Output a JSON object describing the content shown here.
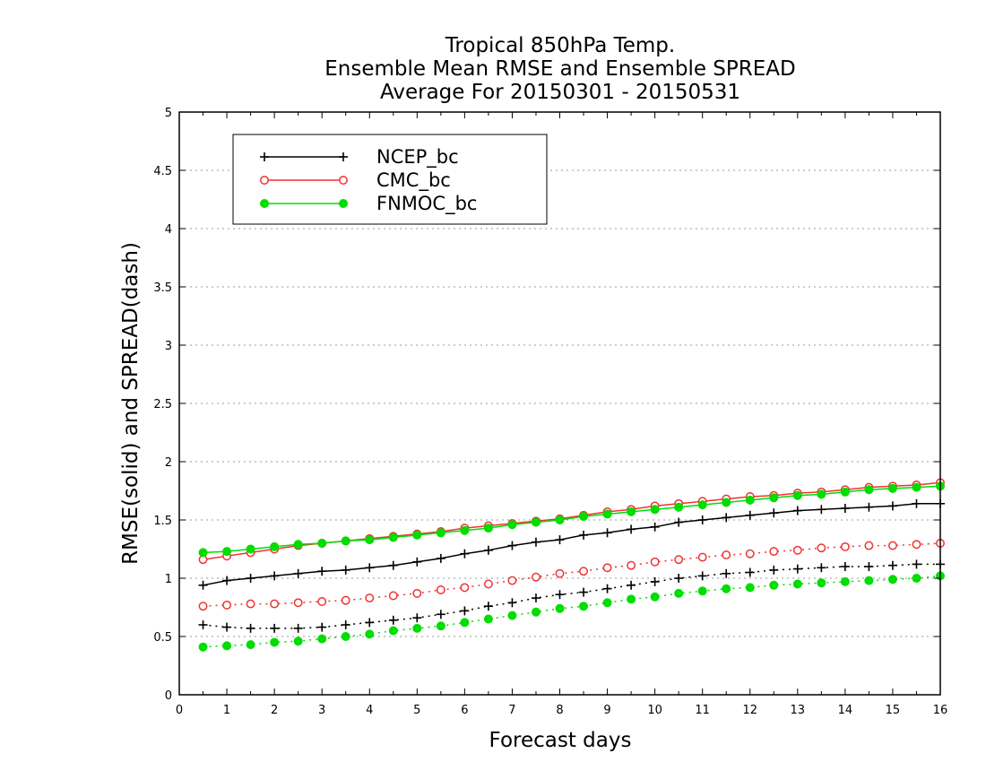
{
  "chart_data": {
    "type": "line",
    "title": [
      "Tropical 850hPa Temp.",
      "Ensemble Mean RMSE and Ensemble SPREAD",
      "Average For 20150301 - 20150531"
    ],
    "xlabel": "Forecast days",
    "ylabel": "RMSE(solid) and SPREAD(dash)",
    "xlim": [
      0,
      16
    ],
    "ylim": [
      0,
      5
    ],
    "xticks": [
      "0",
      "1",
      "2",
      "3",
      "4",
      "5",
      "6",
      "7",
      "8",
      "9",
      "10",
      "11",
      "12",
      "13",
      "14",
      "15",
      "16"
    ],
    "yticks": [
      "0",
      "0.5",
      "1",
      "1.5",
      "2",
      "2.5",
      "3",
      "3.5",
      "4",
      "4.5",
      "5"
    ],
    "grid": "horizontal dotted",
    "legend_position": "top-left",
    "legend": [
      "NCEP_bc",
      "CMC_bc",
      "FNMOC_bc"
    ],
    "x": [
      0.5,
      1,
      1.5,
      2,
      2.5,
      3,
      3.5,
      4,
      4.5,
      5,
      5.5,
      6,
      6.5,
      7,
      7.5,
      8,
      8.5,
      9,
      9.5,
      10,
      10.5,
      11,
      11.5,
      12,
      12.5,
      13,
      13.5,
      14,
      14.5,
      15,
      15.5,
      16
    ],
    "series": [
      {
        "name": "NCEP_bc",
        "style": "solid",
        "marker": "plus",
        "color": "#000000",
        "values": [
          0.94,
          0.98,
          1.0,
          1.02,
          1.04,
          1.06,
          1.07,
          1.09,
          1.11,
          1.14,
          1.17,
          1.21,
          1.24,
          1.28,
          1.31,
          1.33,
          1.37,
          1.39,
          1.42,
          1.44,
          1.48,
          1.5,
          1.52,
          1.54,
          1.56,
          1.58,
          1.59,
          1.6,
          1.61,
          1.62,
          1.64,
          1.64
        ]
      },
      {
        "name": "CMC_bc",
        "style": "solid",
        "marker": "open-circle",
        "color": "#ee3333",
        "values": [
          1.16,
          1.19,
          1.22,
          1.25,
          1.28,
          1.3,
          1.32,
          1.34,
          1.36,
          1.38,
          1.4,
          1.43,
          1.45,
          1.47,
          1.49,
          1.51,
          1.54,
          1.57,
          1.59,
          1.62,
          1.64,
          1.66,
          1.68,
          1.7,
          1.71,
          1.73,
          1.74,
          1.76,
          1.78,
          1.79,
          1.8,
          1.82
        ]
      },
      {
        "name": "FNMOC_bc",
        "style": "solid",
        "marker": "filled-circle",
        "color": "#00dd00",
        "values": [
          1.22,
          1.23,
          1.25,
          1.27,
          1.29,
          1.3,
          1.32,
          1.33,
          1.35,
          1.37,
          1.39,
          1.41,
          1.43,
          1.46,
          1.48,
          1.5,
          1.53,
          1.55,
          1.57,
          1.59,
          1.61,
          1.63,
          1.65,
          1.67,
          1.69,
          1.71,
          1.72,
          1.74,
          1.76,
          1.77,
          1.78,
          1.79
        ]
      },
      {
        "name": "NCEP_bc",
        "style": "dash",
        "marker": "plus",
        "color": "#000000",
        "values": [
          0.6,
          0.58,
          0.57,
          0.57,
          0.57,
          0.58,
          0.6,
          0.62,
          0.64,
          0.66,
          0.69,
          0.72,
          0.76,
          0.79,
          0.83,
          0.86,
          0.88,
          0.91,
          0.94,
          0.97,
          1.0,
          1.02,
          1.04,
          1.05,
          1.07,
          1.08,
          1.09,
          1.1,
          1.1,
          1.11,
          1.12,
          1.12
        ]
      },
      {
        "name": "CMC_bc",
        "style": "dash",
        "marker": "open-circle",
        "color": "#ee3333",
        "values": [
          0.76,
          0.77,
          0.78,
          0.78,
          0.79,
          0.8,
          0.81,
          0.83,
          0.85,
          0.87,
          0.9,
          0.92,
          0.95,
          0.98,
          1.01,
          1.04,
          1.06,
          1.09,
          1.11,
          1.14,
          1.16,
          1.18,
          1.2,
          1.21,
          1.23,
          1.24,
          1.26,
          1.27,
          1.28,
          1.28,
          1.29,
          1.3
        ]
      },
      {
        "name": "FNMOC_bc",
        "style": "dash",
        "marker": "filled-circle",
        "color": "#00dd00",
        "values": [
          0.41,
          0.42,
          0.43,
          0.45,
          0.46,
          0.48,
          0.5,
          0.52,
          0.55,
          0.57,
          0.59,
          0.62,
          0.65,
          0.68,
          0.71,
          0.74,
          0.76,
          0.79,
          0.82,
          0.84,
          0.87,
          0.89,
          0.91,
          0.92,
          0.94,
          0.95,
          0.96,
          0.97,
          0.98,
          0.99,
          1.0,
          1.02
        ]
      }
    ]
  }
}
